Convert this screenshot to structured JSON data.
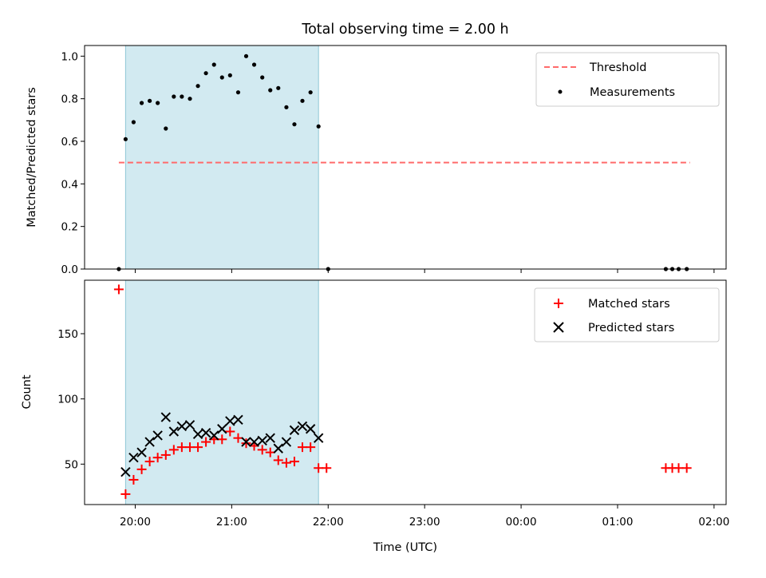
{
  "chart_data": {
    "title": "Total observing time = 2.00 h",
    "xlabel": "Time (UTC)",
    "x_unit": "hours since 00:00 UTC, >=24 means next day",
    "xlim": [
      19.475,
      26.125
    ],
    "x_ticks": [
      {
        "value": 20,
        "label": "20:00"
      },
      {
        "value": 21,
        "label": "21:00"
      },
      {
        "value": 22,
        "label": "22:00"
      },
      {
        "value": 23,
        "label": "23:00"
      },
      {
        "value": 24,
        "label": "00:00"
      },
      {
        "value": 25,
        "label": "01:00"
      },
      {
        "value": 26,
        "label": "02:00"
      }
    ],
    "shaded_span": {
      "x0": 19.9,
      "x1": 21.9,
      "color": "#add8e6"
    },
    "colors": {
      "threshold": "#ff6b6b",
      "measurements": "#000000",
      "matched": "#ff0000",
      "predicted": "#000000",
      "span": "#add8e6"
    },
    "panels": [
      {
        "type": "scatter",
        "ylabel": "Matched/Predicted stars",
        "ylim": [
          0,
          1.05
        ],
        "y_ticks": [
          {
            "value": 0,
            "label": "0.0"
          },
          {
            "value": 0.2,
            "label": "0.2"
          },
          {
            "value": 0.4,
            "label": "0.4"
          },
          {
            "value": 0.6,
            "label": "0.6"
          },
          {
            "value": 0.8,
            "label": "0.8"
          },
          {
            "value": 1.0,
            "label": "1.0"
          }
        ],
        "legend": {
          "position": "top-right",
          "entries": [
            {
              "label": "Threshold",
              "marker": "dashed-line"
            },
            {
              "label": "Measurements",
              "marker": "dot"
            }
          ]
        },
        "series": [
          {
            "name": "Threshold",
            "kind": "dashed-line",
            "x": [
              19.83,
              25.75
            ],
            "y": [
              0.5,
              0.5
            ]
          },
          {
            "name": "Measurements",
            "kind": "dot",
            "x": [
              19.83,
              19.9,
              19.983,
              20.067,
              20.15,
              20.233,
              20.317,
              20.4,
              20.483,
              20.567,
              20.65,
              20.733,
              20.817,
              20.9,
              20.983,
              21.067,
              21.15,
              21.233,
              21.317,
              21.4,
              21.483,
              21.567,
              21.65,
              21.733,
              21.817,
              21.9,
              22.0,
              25.5,
              25.567,
              25.633,
              25.717
            ],
            "y": [
              0,
              0.61,
              0.69,
              0.78,
              0.79,
              0.78,
              0.66,
              0.81,
              0.81,
              0.8,
              0.86,
              0.92,
              0.96,
              0.9,
              0.91,
              0.83,
              1.0,
              0.96,
              0.9,
              0.84,
              0.85,
              0.76,
              0.68,
              0.79,
              0.83,
              0.67,
              0,
              0,
              0,
              0,
              0
            ]
          }
        ]
      },
      {
        "type": "scatter",
        "ylabel": "Count",
        "ylim": [
          19,
          191
        ],
        "y_ticks": [
          {
            "value": 50,
            "label": "50"
          },
          {
            "value": 100,
            "label": "100"
          },
          {
            "value": 150,
            "label": "150"
          }
        ],
        "legend": {
          "position": "top-right",
          "entries": [
            {
              "label": "Matched stars",
              "marker": "plus"
            },
            {
              "label": "Predicted stars",
              "marker": "x"
            }
          ]
        },
        "series": [
          {
            "name": "Matched stars",
            "kind": "plus",
            "x": [
              19.83,
              19.9,
              19.983,
              20.067,
              20.15,
              20.233,
              20.317,
              20.4,
              20.483,
              20.567,
              20.65,
              20.733,
              20.817,
              20.9,
              20.983,
              21.067,
              21.15,
              21.233,
              21.317,
              21.4,
              21.483,
              21.567,
              21.65,
              21.733,
              21.817,
              21.9,
              21.983,
              25.5,
              25.567,
              25.633,
              25.717
            ],
            "y": [
              184,
              27,
              38,
              46,
              52,
              55,
              57,
              61,
              63,
              63,
              63,
              67,
              69,
              69,
              75,
              70,
              66,
              64,
              61,
              59,
              53,
              51,
              52,
              63,
              63,
              47,
              47,
              47,
              47,
              47,
              47
            ]
          },
          {
            "name": "Predicted stars",
            "kind": "x",
            "x": [
              19.9,
              19.983,
              20.067,
              20.15,
              20.233,
              20.317,
              20.4,
              20.483,
              20.567,
              20.65,
              20.733,
              20.817,
              20.9,
              20.983,
              21.067,
              21.15,
              21.233,
              21.317,
              21.4,
              21.483,
              21.567,
              21.65,
              21.733,
              21.817,
              21.9
            ],
            "y": [
              44,
              55,
              59,
              67,
              72,
              86,
              75,
              79,
              80,
              73,
              74,
              72,
              77,
              83,
              84,
              67,
              67,
              68,
              70,
              62,
              67,
              76,
              79,
              77,
              70
            ]
          }
        ]
      }
    ]
  }
}
